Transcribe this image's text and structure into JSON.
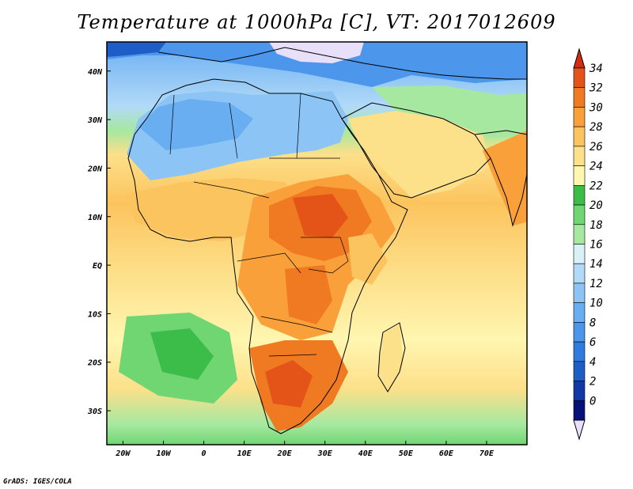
{
  "title": "Temperature at 1000hPa [C], VT: 2017012609",
  "credit": "GrADS: IGES/COLA",
  "map": {
    "region": "Africa, Arabian Peninsula and western Indian Ocean",
    "lon_range": [
      -24,
      80
    ],
    "lat_range": [
      -37,
      46
    ],
    "x_ticks": [
      {
        "value": -20,
        "label": "20W"
      },
      {
        "value": -10,
        "label": "10W"
      },
      {
        "value": 0,
        "label": "0"
      },
      {
        "value": 10,
        "label": "10E"
      },
      {
        "value": 20,
        "label": "20E"
      },
      {
        "value": 30,
        "label": "30E"
      },
      {
        "value": 40,
        "label": "40E"
      },
      {
        "value": 50,
        "label": "50E"
      },
      {
        "value": 60,
        "label": "60E"
      },
      {
        "value": 70,
        "label": "70E"
      }
    ],
    "y_ticks": [
      {
        "value": 40,
        "label": "40N"
      },
      {
        "value": 30,
        "label": "30N"
      },
      {
        "value": 20,
        "label": "20N"
      },
      {
        "value": 10,
        "label": "10N"
      },
      {
        "value": 0,
        "label": "EQ"
      },
      {
        "value": -10,
        "label": "10S"
      },
      {
        "value": -20,
        "label": "20S"
      },
      {
        "value": -30,
        "label": "30S"
      }
    ]
  },
  "colorbar": {
    "levels": [
      {
        "label": "0",
        "color": "#08107a"
      },
      {
        "label": "2",
        "color": "#1238a8"
      },
      {
        "label": "4",
        "color": "#1e5cc8"
      },
      {
        "label": "6",
        "color": "#2f7ce0"
      },
      {
        "label": "8",
        "color": "#4c96ec"
      },
      {
        "label": "10",
        "color": "#6aaef2"
      },
      {
        "label": "12",
        "color": "#8cc4f6"
      },
      {
        "label": "14",
        "color": "#b2daf8"
      },
      {
        "label": "16",
        "color": "#d8f0f6"
      },
      {
        "label": "18",
        "color": "#a6e8a0"
      },
      {
        "label": "20",
        "color": "#6fd672"
      },
      {
        "label": "22",
        "color": "#3cbc48"
      },
      {
        "label": "24",
        "color": "#fff6b0"
      },
      {
        "label": "26",
        "color": "#fde08a"
      },
      {
        "label": "28",
        "color": "#fcc45e"
      },
      {
        "label": "30",
        "color": "#f9a03a"
      },
      {
        "label": "32",
        "color": "#f07a22"
      },
      {
        "label": "34",
        "color": "#e45418"
      }
    ],
    "under_color": "#e8e0fa",
    "over_color": "#d42c10"
  }
}
